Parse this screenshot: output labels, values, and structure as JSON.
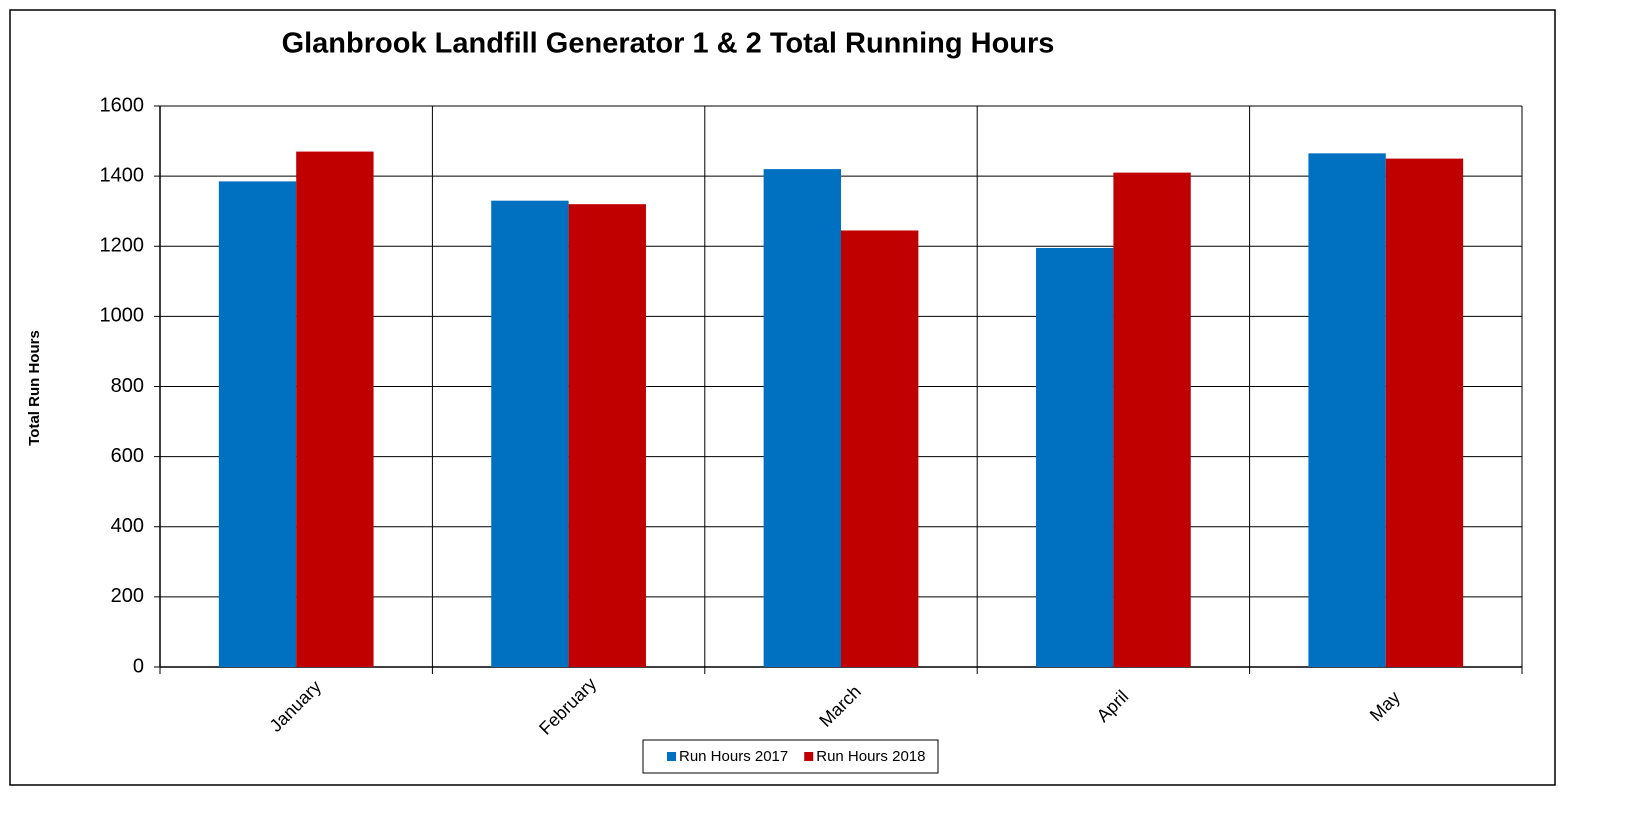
{
  "chart_data": {
    "type": "bar",
    "title": "Glanbrook Landfill Generator 1 & 2 Total Running Hours",
    "y_label": "Total Run Hours",
    "categories": [
      "January",
      "February",
      "March",
      "April",
      "May"
    ],
    "series": [
      {
        "name": "Run Hours 2017",
        "color": "#0070c0",
        "values": [
          1385,
          1330,
          1420,
          1195,
          1465
        ]
      },
      {
        "name": "Run Hours 2018",
        "color": "#c00000",
        "values": [
          1470,
          1320,
          1245,
          1410,
          1450
        ]
      }
    ],
    "ylim": [
      0,
      1600
    ],
    "yticks": [
      0,
      200,
      400,
      600,
      800,
      1000,
      1200,
      1400,
      1600
    ],
    "grid": true,
    "legend": "bottom"
  }
}
